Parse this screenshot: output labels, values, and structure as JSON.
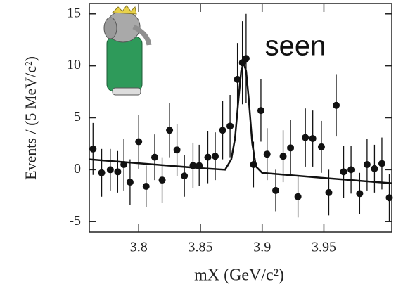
{
  "chart_data": {
    "type": "scatter",
    "annotation": "seen",
    "x_label": "mX (GeV/c²)",
    "y_label": "Events / (5 MeV/c²)",
    "xlim": [
      3.76,
      4.005
    ],
    "ylim": [
      -6,
      16
    ],
    "xticks": [
      3.8,
      3.85,
      3.9,
      3.95
    ],
    "yticks": [
      -5,
      0,
      5,
      10,
      15
    ],
    "series": [
      {
        "type": "scatter",
        "color": "#111111",
        "x": [
          3.763,
          3.77,
          3.777,
          3.783,
          3.788,
          3.793,
          3.8,
          3.806,
          3.813,
          3.819,
          3.825,
          3.831,
          3.837,
          3.844,
          3.849,
          3.856,
          3.862,
          3.868,
          3.874,
          3.88,
          3.884,
          3.887,
          3.893,
          3.899,
          3.904,
          3.911,
          3.917,
          3.923,
          3.929,
          3.935,
          3.941,
          3.948,
          3.954,
          3.96,
          3.966,
          3.972,
          3.979,
          3.985,
          3.991,
          3.997,
          4.003
        ],
        "values": [
          2.0,
          -0.3,
          0.0,
          -0.2,
          0.5,
          -1.2,
          2.7,
          -1.6,
          1.2,
          -1.0,
          3.8,
          1.9,
          -0.6,
          0.4,
          0.4,
          1.2,
          1.3,
          3.8,
          4.2,
          8.7,
          10.3,
          10.7,
          0.5,
          5.7,
          1.5,
          -2.0,
          1.3,
          2.1,
          -2.6,
          3.1,
          3.0,
          2.2,
          -2.2,
          6.2,
          -0.2,
          0.0,
          -2.3,
          0.5,
          0.1,
          0.6,
          -2.7
        ],
        "errors": [
          2.5,
          2.3,
          2.0,
          2.0,
          2.5,
          2.2,
          2.6,
          2.0,
          2.2,
          2.2,
          2.6,
          2.5,
          2.0,
          2.2,
          2.0,
          2.5,
          2.3,
          2.8,
          3.0,
          3.5,
          4.0,
          4.3,
          2.2,
          3.0,
          2.5,
          2.0,
          2.5,
          2.7,
          2.0,
          2.8,
          2.7,
          2.5,
          2.2,
          3.0,
          2.5,
          2.3,
          2.0,
          2.5,
          2.3,
          2.5,
          2.3
        ]
      },
      {
        "type": "line",
        "color": "#111111",
        "x": [
          3.76,
          3.85,
          3.87,
          3.875,
          3.878,
          3.881,
          3.883,
          3.885,
          3.887,
          3.889,
          3.892,
          3.895,
          3.9,
          3.95,
          4.005
        ],
        "values": [
          1.0,
          0.15,
          0.0,
          1.0,
          3.0,
          7.0,
          9.5,
          10.3,
          9.5,
          7.0,
          2.5,
          0.3,
          -0.3,
          -0.8,
          -1.3
        ]
      }
    ]
  }
}
